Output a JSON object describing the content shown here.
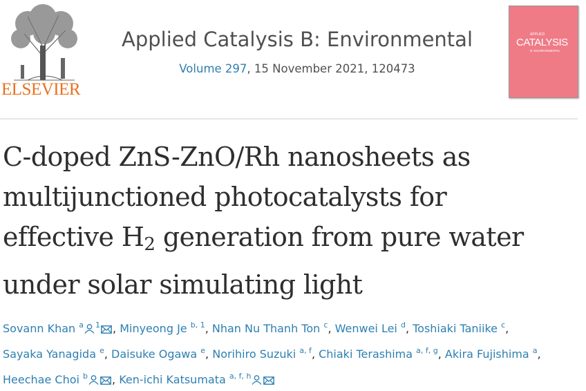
{
  "journal": {
    "publisher": "ELSEVIER",
    "name": "Applied Catalysis B: Environmental",
    "volume": "Volume 297",
    "issue_info": ", 15 November 2021, 120473",
    "cover": {
      "label": "APPLIED",
      "title": "CATALYSIS",
      "subtitle": "B: ENVIRONMENTAL"
    }
  },
  "title": [
    "C-doped ZnS-ZnO/Rh nanosheets as",
    "multijunctioned photocatalysts for",
    [
      "effective H",
      "2",
      " generation from pure water"
    ],
    "under solar simulating light"
  ],
  "authors_separator": ", ",
  "authors": [
    {
      "name": "Sovann Khan",
      "sup": "a",
      "sup2": "1"
    },
    {
      "name": "Minyeong Je",
      "sup": "b, 1"
    },
    {
      "name": "Nhan Nu Thanh Ton",
      "sup": "c"
    },
    {
      "name": "Wenwei Lei",
      "sup": "d"
    },
    {
      "name": "Toshiaki Taniike",
      "sup": "c"
    },
    {
      "name": "Sayaka Yanagida",
      "sup": "e"
    },
    {
      "name": "Daisuke Ogawa",
      "sup": "e"
    },
    {
      "name": "Norihiro Suzuki",
      "sup": "a, f"
    },
    {
      "name": "Chiaki Terashima",
      "sup": "a, f, g"
    },
    {
      "name": "Akira Fujishima",
      "sup": "a"
    },
    {
      "name": "Heechae Choi",
      "sup": "b"
    },
    {
      "name": "Ken-ichi Katsumata",
      "sup": "a, f, h"
    }
  ]
}
